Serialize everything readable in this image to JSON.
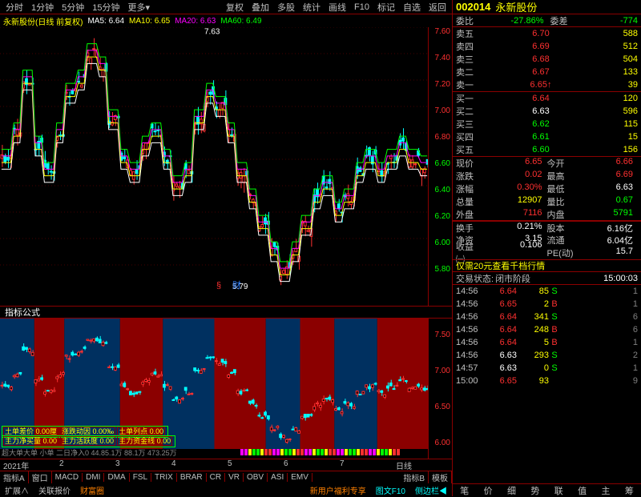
{
  "topbar": {
    "items": [
      "分时",
      "1分钟",
      "5分钟",
      "15分钟",
      "更多▾"
    ],
    "right": [
      "复权",
      "叠加",
      "多股",
      "统计",
      "画线",
      "F10",
      "标记",
      "自选",
      "返回"
    ]
  },
  "title": {
    "text": "永新股份(日线 前复权)",
    "ma": [
      {
        "label": "MA5:",
        "v": "6.64",
        "c": "#fff"
      },
      {
        "label": "MA10:",
        "v": "6.65",
        "c": "#ffff00"
      },
      {
        "label": "MA20:",
        "v": "6.63",
        "c": "#ff00ff"
      },
      {
        "label": "MA60:",
        "v": "6.49",
        "c": "#00ff00"
      }
    ]
  },
  "chart": {
    "high_label": "7.63",
    "low_label": "5.79",
    "yticks": [
      "7.60",
      "7.40",
      "7.20",
      "7.00",
      "6.80",
      "6.60",
      "6.40",
      "6.20",
      "6.00",
      "5.80"
    ],
    "ytick_color": "#ff3030",
    "last_ticks_green": [
      "6.60",
      "6.40",
      "6.20",
      "6.00",
      "5.80"
    ],
    "sub_yticks": [
      "7.50",
      "7.00",
      "6.50",
      "6.00"
    ],
    "xlabels": [
      "2021年",
      "2",
      "3",
      "4",
      "5",
      "6",
      "7",
      "日线"
    ]
  },
  "indicator_label": "指标公式",
  "overlay1": [
    "土单差价 0.00厘",
    "涨跌动因 0.00‰",
    "土单列点 0.00"
  ],
  "overlay2": [
    "主力净买量 0.00",
    "主力活跃度 0.00",
    "主力资金线 0.00"
  ],
  "overlay3": "超大单大单     小单        二日净入0          44.85.1万      88.1万        473.25万",
  "indicators": {
    "left": [
      "指标A",
      "窗口",
      "MACD",
      "DMI",
      "DMA",
      "FSL",
      "TRIX",
      "BRAR",
      "CR",
      "VR",
      "OBV",
      "ASI",
      "EMV"
    ],
    "right": [
      "指标B",
      "模板"
    ]
  },
  "bottom": {
    "items": [
      "扩展∧",
      "关联报价",
      "财富圈"
    ],
    "right": [
      "新用户福利专享",
      "图文F10",
      "侧边栏◀"
    ]
  },
  "stock": {
    "code": "002014",
    "name": "永新股份"
  },
  "ratio": {
    "wl": "委比",
    "wv": "-27.86%",
    "dl": "委差",
    "dv": "-774"
  },
  "asks": [
    {
      "l": "卖五",
      "p": "6.70",
      "v": "588",
      "c": "#ff3030"
    },
    {
      "l": "卖四",
      "p": "6.69",
      "v": "512",
      "c": "#ff3030"
    },
    {
      "l": "卖三",
      "p": "6.68",
      "v": "504",
      "c": "#ff3030"
    },
    {
      "l": "卖二",
      "p": "6.67",
      "v": "133",
      "c": "#ff3030"
    },
    {
      "l": "卖一",
      "p": "6.65↑",
      "v": "39",
      "c": "#ff3030"
    }
  ],
  "bids": [
    {
      "l": "买一",
      "p": "6.64",
      "v": "120",
      "c": "#ff3030"
    },
    {
      "l": "买二",
      "p": "6.63",
      "v": "596",
      "c": "#fff"
    },
    {
      "l": "买三",
      "p": "6.62",
      "v": "115",
      "c": "#00ff00"
    },
    {
      "l": "买四",
      "p": "6.61",
      "v": "15",
      "c": "#00ff00"
    },
    {
      "l": "买五",
      "p": "6.60",
      "v": "156",
      "c": "#00ff00"
    }
  ],
  "info": [
    [
      {
        "k": "现价",
        "v": "6.65",
        "c": "#ff3030"
      },
      {
        "k": "今开",
        "v": "6.66",
        "c": "#ff3030"
      }
    ],
    [
      {
        "k": "涨跌",
        "v": "0.02",
        "c": "#ff3030"
      },
      {
        "k": "最高",
        "v": "6.69",
        "c": "#ff3030"
      }
    ],
    [
      {
        "k": "涨幅",
        "v": "0.30%",
        "c": "#ff3030"
      },
      {
        "k": "最低",
        "v": "6.63",
        "c": "#fff"
      }
    ],
    [
      {
        "k": "总量",
        "v": "12907",
        "c": "#ffff00"
      },
      {
        "k": "量比",
        "v": "0.67",
        "c": "#00ff00"
      }
    ],
    [
      {
        "k": "外盘",
        "v": "7116",
        "c": "#ff3030"
      },
      {
        "k": "内盘",
        "v": "5791",
        "c": "#00ff00"
      }
    ],
    [
      {
        "k": "换手",
        "v": "0.21%",
        "c": "#fff"
      },
      {
        "k": "股本",
        "v": "6.16亿",
        "c": "#fff"
      }
    ],
    [
      {
        "k": "净资",
        "v": "3.15",
        "c": "#fff"
      },
      {
        "k": "流通",
        "v": "6.04亿",
        "c": "#fff"
      }
    ],
    [
      {
        "k": "收益㈠",
        "v": "0.106",
        "c": "#fff"
      },
      {
        "k": "PE(动)",
        "v": "15.7",
        "c": "#fff"
      }
    ]
  ],
  "promo": "仅需20元查看千档行情",
  "status": {
    "l": "交易状态:",
    "v": "闭市阶段",
    "t": "15:00:03"
  },
  "ticks": [
    {
      "t": "14:56",
      "p": "6.64",
      "pc": "#ff3030",
      "q": "85",
      "d": "S",
      "dc": "#00ff00",
      "n": "1"
    },
    {
      "t": "14:56",
      "p": "6.65",
      "pc": "#ff3030",
      "q": "2",
      "d": "B",
      "dc": "#ff3030",
      "n": "1"
    },
    {
      "t": "14:56",
      "p": "6.64",
      "pc": "#ff3030",
      "q": "341",
      "d": "S",
      "dc": "#00ff00",
      "n": "6"
    },
    {
      "t": "14:56",
      "p": "6.64",
      "pc": "#ff3030",
      "q": "248",
      "d": "B",
      "dc": "#ff3030",
      "n": "6"
    },
    {
      "t": "14:56",
      "p": "6.64",
      "pc": "#ff3030",
      "q": "5",
      "d": "B",
      "dc": "#ff3030",
      "n": "1"
    },
    {
      "t": "14:56",
      "p": "6.63",
      "pc": "#fff",
      "q": "293",
      "d": "S",
      "dc": "#00ff00",
      "n": "2"
    },
    {
      "t": "14:57",
      "p": "6.63",
      "pc": "#fff",
      "q": "0",
      "d": "S",
      "dc": "#00ff00",
      "n": "1"
    },
    {
      "t": "15:00",
      "p": "6.65",
      "pc": "#ff3030",
      "q": "93",
      "d": "",
      "dc": "",
      "n": "9"
    }
  ],
  "right_tabs": [
    "笔",
    "价",
    "细",
    "势",
    "联",
    "值",
    "主",
    "筹"
  ]
}
